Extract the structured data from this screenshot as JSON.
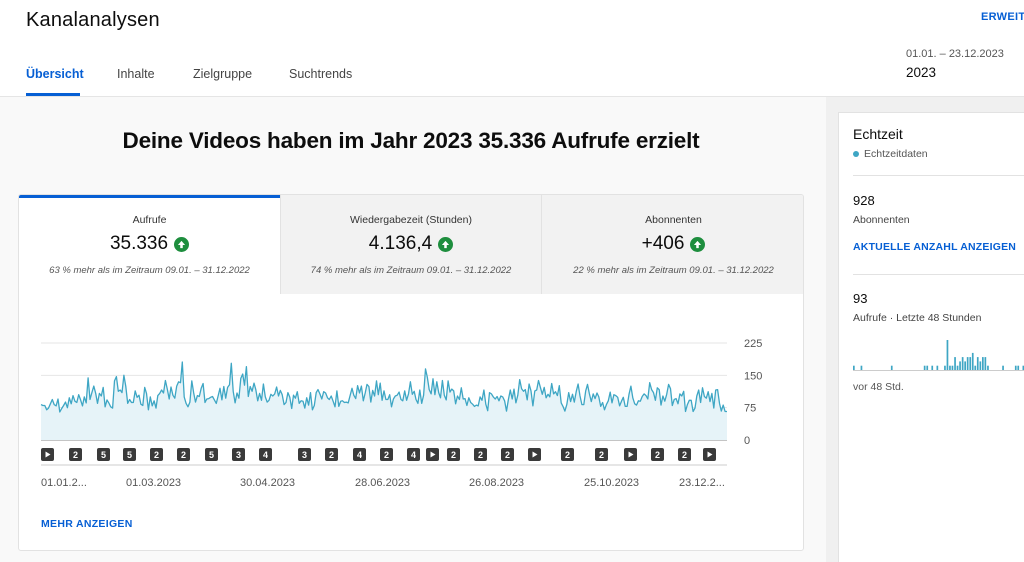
{
  "header": {
    "title": "Kanalanalysen",
    "expand_label": "ERWEIT",
    "tabs": [
      {
        "label": "Übersicht",
        "active": true
      },
      {
        "label": "Inhalte",
        "active": false
      },
      {
        "label": "Zielgruppe",
        "active": false
      },
      {
        "label": "Suchtrends",
        "active": false
      }
    ],
    "period_range": "01.01. – 23.12.2023",
    "period_label": "2023"
  },
  "main": {
    "headline": "Deine Videos haben im Jahr 2023 35.336 Aufrufe erzielt",
    "metrics": [
      {
        "label": "Aufrufe",
        "value": "35.336",
        "compare": "63 % mehr als im Zeitraum 09.01. – 31.12.2022",
        "active": true
      },
      {
        "label": "Wiedergabezeit (Stunden)",
        "value": "4.136,4",
        "compare": "74 % mehr als im Zeitraum 09.01. – 31.12.2022",
        "active": false
      },
      {
        "label": "Abonnenten",
        "value": "+406",
        "compare": "22 % mehr als im Zeitraum 09.01. – 31.12.2022",
        "active": false
      }
    ],
    "more_label": "MEHR ANZEIGEN"
  },
  "chart_data": {
    "type": "area",
    "series": [
      {
        "values": [
          82,
          80,
          80,
          70,
          74,
          84,
          94,
          82,
          79,
          95,
          65,
          73,
          80,
          88,
          75,
          98,
          84,
          103,
          90,
          87,
          105,
          93,
          79,
          100,
          86,
          144,
          94,
          110,
          125,
          108,
          85,
          108,
          102,
          122,
          77,
          93,
          86,
          77,
          74,
          137,
          147,
          113,
          116,
          110,
          150,
          124,
          85,
          94,
          87,
          87,
          114,
          99,
          104,
          83,
          80,
          122,
          108,
          70,
          100,
          79,
          91,
          74,
          103,
          108,
          116,
          109,
          138,
          118,
          95,
          123,
          104,
          97,
          125,
          135,
          133,
          181,
          100,
          85,
          77,
          88,
          137,
          109,
          88,
          103,
          101,
          120,
          131,
          87,
          95,
          96,
          99,
          101,
          93,
          85,
          103,
          120,
          93,
          124,
          97,
          122,
          128,
          178,
          113,
          86,
          109,
          97,
          143,
          153,
          127,
          170,
          101,
          124,
          113,
          132,
          117,
          91,
          108,
          92,
          130,
          100,
          88,
          92,
          106,
          102,
          107,
          123,
          102,
          115,
          105,
          82,
          87,
          110,
          99,
          73,
          104,
          97,
          112,
          85,
          91,
          90,
          74,
          98,
          81,
          110,
          70,
          80,
          110,
          117,
          107,
          95,
          112,
          109,
          98,
          94,
          102,
          90,
          77,
          114,
          78,
          90,
          91,
          87,
          88,
          86,
          103,
          120,
          104,
          96,
          126,
          109,
          125,
          91,
          109,
          129,
          124,
          88,
          115,
          102,
          137,
          105,
          132,
          92,
          114,
          94,
          94,
          105,
          77,
          95,
          102,
          104,
          111,
          94,
          91,
          114,
          92,
          107,
          135,
          106,
          113,
          94,
          85,
          116,
          85,
          104,
          165,
          146,
          117,
          107,
          142,
          105,
          135,
          110,
          98,
          138,
          104,
          93,
          137,
          111,
          118,
          114,
          84,
          102,
          94,
          121,
          95,
          96,
          80,
          98,
          87,
          83,
          78,
          81,
          79,
          100,
          92,
          116,
          83,
          68,
          110,
          107,
          100,
          95,
          101,
          91,
          102,
          100,
          91,
          67,
          94,
          116,
          95,
          118,
          86,
          104,
          140,
          119,
          113,
          117,
          93,
          130,
          114,
          79,
          114,
          116,
          138,
          122,
          106,
          122,
          98,
          106,
          100,
          131,
          107,
          112,
          103,
          126,
          86,
          78,
          67,
          82,
          110,
          89,
          106,
          88,
          112,
          130,
          102,
          82,
          82,
          114,
          129,
          107,
          89,
          107,
          96,
          109,
          100,
          78,
          87,
          70,
          82,
          91,
          111,
          86,
          105,
          103,
          99,
          79,
          90,
          99,
          78,
          78,
          106,
          125,
          98,
          84,
          81,
          91,
          90,
          101,
          107,
          103,
          95,
          133,
          117,
          110,
          92,
          121,
          117,
          81,
          102,
          90,
          106,
          129,
          119,
          80,
          94,
          96,
          84,
          107,
          102,
          113,
          66,
          82,
          92,
          92,
          66,
          74,
          102,
          116,
          87,
          121,
          101,
          97,
          112,
          89,
          108,
          74,
          116,
          117,
          85,
          67,
          81,
          66,
          66
        ]
      }
    ],
    "ylim": [
      0,
      225
    ],
    "yticks": [
      "225",
      "150",
      "75",
      "0"
    ],
    "xlabels": [
      "01.01.2...",
      "01.03.2023",
      "30.04.2023",
      "28.06.2023",
      "26.08.2023",
      "25.10.2023",
      "23.12.2..."
    ],
    "markers": [
      "play",
      "2",
      "5",
      "5",
      "2",
      "2",
      "5",
      "3",
      "4",
      "3",
      "2",
      "4",
      "2",
      "4",
      "play",
      "2",
      "2",
      "2",
      "play",
      "2",
      "2",
      "play",
      "2",
      "2",
      "play"
    ]
  },
  "realtime": {
    "title": "Echtzeit",
    "subtitle": "Echtzeitdaten",
    "subscribers_value": "928",
    "subscribers_label": "Abonnenten",
    "show_count_label": "AKTUELLE ANZAHL ANZEIGEN",
    "views_value": "93",
    "views_label": "Aufrufe · Letzte 48 Stunden",
    "ago_label": "vor 48 Std.",
    "hourly_views": [
      1,
      0,
      0,
      1,
      0,
      0,
      0,
      0,
      0,
      0,
      0,
      0,
      0,
      0,
      0,
      1,
      0,
      0,
      0,
      0,
      0,
      0,
      0,
      0,
      0,
      0,
      0,
      0,
      1,
      1,
      0,
      1,
      0,
      1,
      0,
      0,
      1,
      7,
      1,
      1,
      3,
      1,
      2,
      3,
      2,
      3,
      3,
      4,
      1,
      3,
      2,
      3,
      3,
      1,
      0,
      0,
      0,
      0,
      0,
      1,
      0,
      0,
      0,
      0,
      1,
      1,
      0,
      1
    ],
    "accent_color": "#3ea6c4"
  }
}
